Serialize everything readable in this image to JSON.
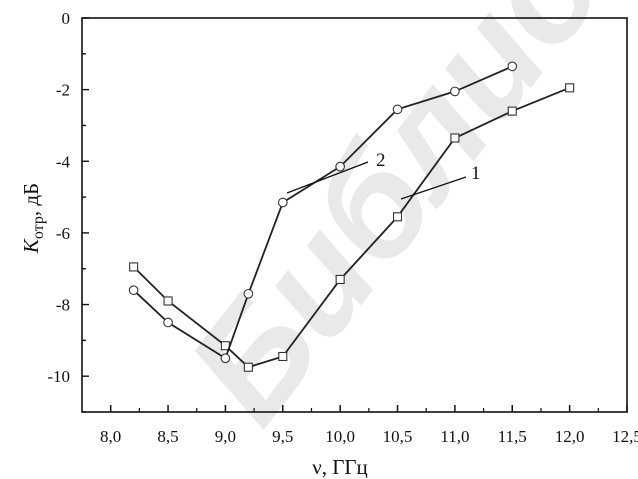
{
  "watermark": "Библиотека БГ",
  "chart_data": {
    "type": "line",
    "xlabel": "ν,  ГГц",
    "ylabel_main": "K",
    "ylabel_sub": "отр",
    "ylabel_unit": ", дБ",
    "xlim": [
      7.75,
      12.5
    ],
    "ylim": [
      -11,
      0
    ],
    "x_ticks": [
      "8,0",
      "8,5",
      "9,0",
      "9,5",
      "10,0",
      "10,5",
      "11,0",
      "11,5",
      "12,0",
      "12,5"
    ],
    "y_ticks": [
      "0",
      "-2",
      "-4",
      "-6",
      "-8",
      "-10"
    ],
    "grid": false,
    "legend": "none",
    "series": [
      {
        "name": "1",
        "marker": "square",
        "x": [
          8.2,
          8.5,
          9.0,
          9.2,
          9.5,
          10.0,
          10.5,
          11.0,
          11.5,
          12.0
        ],
        "y": [
          -6.95,
          -7.9,
          -9.15,
          -9.75,
          -9.45,
          -7.3,
          -5.55,
          -3.35,
          -2.6,
          -1.95
        ]
      },
      {
        "name": "2",
        "marker": "circle",
        "x": [
          8.2,
          8.5,
          9.0,
          9.2,
          9.5,
          10.0,
          10.5,
          11.0,
          11.5
        ],
        "y": [
          -7.6,
          -8.5,
          -9.5,
          -7.7,
          -5.15,
          -4.15,
          -2.55,
          -2.05,
          -1.35
        ]
      }
    ]
  }
}
